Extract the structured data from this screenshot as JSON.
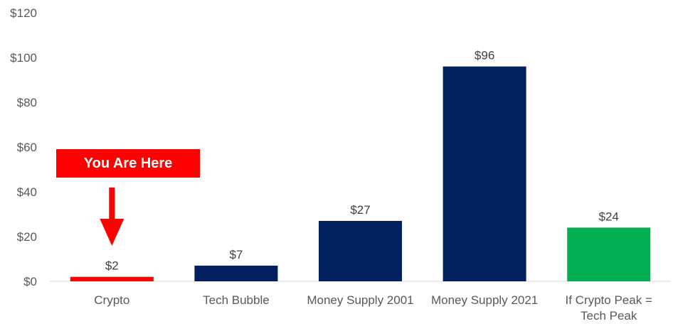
{
  "chart_data": {
    "type": "bar",
    "categories": [
      "Crypto",
      "Tech Bubble",
      "Money Supply 2001",
      "Money Supply 2021",
      "If Crypto Peak = Tech Peak"
    ],
    "values": [
      2,
      7,
      27,
      96,
      24
    ],
    "data_labels": [
      "$2",
      "$7",
      "$27",
      "$96",
      "$24"
    ],
    "bar_colors": [
      "#ff0000",
      "#002060",
      "#002060",
      "#002060",
      "#00b050"
    ],
    "ylim": [
      0,
      120
    ],
    "yticks": [
      0,
      20,
      40,
      60,
      80,
      100,
      120
    ],
    "ytick_labels": [
      "$0",
      "$20",
      "$40",
      "$60",
      "$80",
      "$100",
      "$120"
    ],
    "grid": false,
    "annotation": {
      "text": "You Are Here",
      "color": "#ff0000",
      "points_to": "Crypto"
    }
  }
}
